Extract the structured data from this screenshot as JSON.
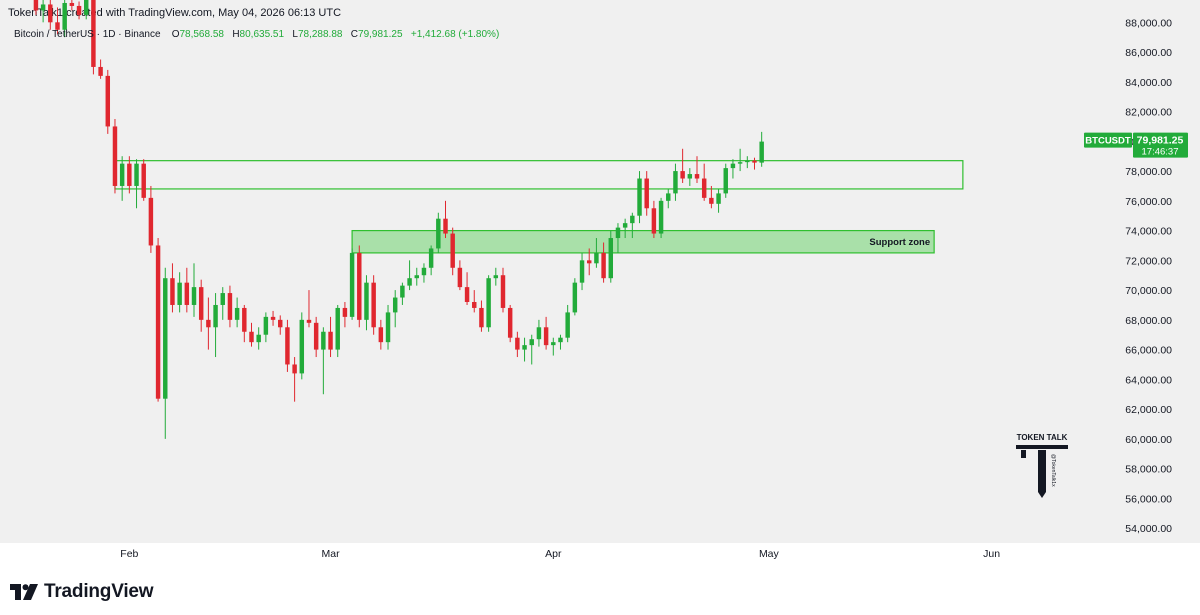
{
  "header": {
    "text": "TokenTalk1 created with TradingView.com, May 04, 2026 06:13 UTC"
  },
  "legend": {
    "symbol": "Bitcoin / TetherUS · 1D · Binance",
    "o_label": "O",
    "o_value": "78,568.58",
    "h_label": "H",
    "h_value": "80,635.51",
    "l_label": "L",
    "l_value": "78,288.88",
    "c_label": "C",
    "c_value": "79,981.25",
    "change": "+1,412.68 (+1.80%)"
  },
  "price_tag": {
    "symbol": "BTCUSDT",
    "price": "79,981.25",
    "countdown": "17:46:37"
  },
  "footer": {
    "brand": "TradingView"
  },
  "watermark": {
    "title": "TOKEN TALK",
    "handle": "@TokenTalk1x"
  },
  "colors": {
    "up": "#22ab3a",
    "down": "#e0272f",
    "zone_fill": "#6fd36f",
    "zone_border": "#2fbf2f",
    "bg": "#f0f0f0"
  },
  "chart_data": {
    "type": "candlestick",
    "title": "Bitcoin / TetherUS · 1D · Binance",
    "ylim": [
      53000,
      89500
    ],
    "y_axis_position": "right",
    "y_ticks": [
      88000,
      86000,
      84000,
      82000,
      80000,
      78000,
      76000,
      74000,
      72000,
      70000,
      68000,
      66000,
      64000,
      62000,
      60000,
      58000,
      56000,
      54000
    ],
    "y_tick_labels": [
      "88,000.00",
      "86,000.00",
      "84,000.00",
      "82,000.00",
      "80,000.00",
      "78,000.00",
      "76,000.00",
      "74,000.00",
      "72,000.00",
      "70,000.00",
      "68,000.00",
      "66,000.00",
      "64,000.00",
      "62,000.00",
      "60,000.00",
      "58,000.00",
      "56,000.00",
      "54,000.00"
    ],
    "x_ticks": [
      {
        "label": "Feb",
        "date": "2026-02-01"
      },
      {
        "label": "Mar",
        "date": "2026-03-01"
      },
      {
        "label": "Apr",
        "date": "2026-04-01"
      },
      {
        "label": "May",
        "date": "2026-05-01"
      },
      {
        "label": "Jun",
        "date": "2026-06-01"
      }
    ],
    "x_range": [
      "2026-01-14",
      "2026-06-30"
    ],
    "grid": false,
    "candles_ohlc": [
      [
        "2026-01-19",
        89500,
        90000,
        88500,
        88800
      ],
      [
        "2026-01-20",
        88800,
        89600,
        88000,
        89200
      ],
      [
        "2026-01-21",
        89200,
        89500,
        87500,
        88000
      ],
      [
        "2026-01-22",
        88000,
        89000,
        87200,
        87500
      ],
      [
        "2026-01-23",
        87500,
        89600,
        87000,
        89300
      ],
      [
        "2026-01-24",
        89300,
        89600,
        88800,
        89100
      ],
      [
        "2026-01-25",
        89100,
        89400,
        88200,
        88500
      ],
      [
        "2026-01-26",
        88500,
        89800,
        88200,
        89500
      ],
      [
        "2026-01-27",
        89500,
        89700,
        84500,
        85000
      ],
      [
        "2026-01-28",
        85000,
        85500,
        84200,
        84400
      ],
      [
        "2026-01-29",
        84400,
        84800,
        80500,
        81000
      ],
      [
        "2026-01-30",
        81000,
        81500,
        76500,
        77000
      ],
      [
        "2026-01-31",
        77000,
        79000,
        76000,
        78500
      ],
      [
        "2026-02-01",
        78500,
        79000,
        76500,
        77000
      ],
      [
        "2026-02-02",
        77000,
        78800,
        75500,
        78500
      ],
      [
        "2026-02-03",
        78500,
        78800,
        76000,
        76200
      ],
      [
        "2026-02-04",
        76200,
        77000,
        72500,
        73000
      ],
      [
        "2026-02-05",
        73000,
        73500,
        62500,
        62700
      ],
      [
        "2026-02-06",
        62700,
        71500,
        60000,
        70800
      ],
      [
        "2026-02-07",
        70800,
        71800,
        68500,
        69000
      ],
      [
        "2026-02-08",
        69000,
        71200,
        68500,
        70500
      ],
      [
        "2026-02-09",
        70500,
        71500,
        68500,
        69000
      ],
      [
        "2026-02-10",
        69000,
        71800,
        68200,
        70200
      ],
      [
        "2026-02-11",
        70200,
        70700,
        67200,
        68000
      ],
      [
        "2026-02-12",
        68000,
        69500,
        66000,
        67500
      ],
      [
        "2026-02-13",
        67500,
        69800,
        65500,
        69000
      ],
      [
        "2026-02-14",
        69000,
        70200,
        68000,
        69800
      ],
      [
        "2026-02-15",
        69800,
        70300,
        67500,
        68000
      ],
      [
        "2026-02-16",
        68000,
        69500,
        67500,
        68800
      ],
      [
        "2026-02-17",
        68800,
        69000,
        66500,
        67200
      ],
      [
        "2026-02-18",
        67200,
        67800,
        66200,
        66500
      ],
      [
        "2026-02-19",
        66500,
        67500,
        66000,
        67000
      ],
      [
        "2026-02-20",
        67000,
        68500,
        66500,
        68200
      ],
      [
        "2026-02-21",
        68200,
        68600,
        67600,
        68000
      ],
      [
        "2026-02-22",
        68000,
        68300,
        67000,
        67500
      ],
      [
        "2026-02-23",
        67500,
        68000,
        64500,
        65000
      ],
      [
        "2026-02-24",
        65000,
        65500,
        62500,
        64400
      ],
      [
        "2026-02-25",
        64400,
        68500,
        64000,
        68000
      ],
      [
        "2026-02-26",
        68000,
        70000,
        67500,
        67800
      ],
      [
        "2026-02-27",
        67800,
        68200,
        65500,
        66000
      ],
      [
        "2026-02-28",
        66000,
        67500,
        63000,
        67200
      ],
      [
        "2026-03-01",
        67200,
        68200,
        65500,
        66000
      ],
      [
        "2026-03-02",
        66000,
        69000,
        65500,
        68800
      ],
      [
        "2026-03-03",
        68800,
        69200,
        67500,
        68200
      ],
      [
        "2026-03-04",
        68200,
        72800,
        68000,
        72500
      ],
      [
        "2026-03-05",
        72500,
        73000,
        67500,
        68000
      ],
      [
        "2026-03-06",
        68000,
        71000,
        67300,
        70500
      ],
      [
        "2026-03-07",
        70500,
        71000,
        67000,
        67500
      ],
      [
        "2026-03-08",
        67500,
        68000,
        66000,
        66500
      ],
      [
        "2026-03-09",
        66500,
        69000,
        66000,
        68500
      ],
      [
        "2026-03-10",
        68500,
        70000,
        67500,
        69500
      ],
      [
        "2026-03-11",
        69500,
        70500,
        69000,
        70300
      ],
      [
        "2026-03-12",
        70300,
        72000,
        70000,
        70800
      ],
      [
        "2026-03-13",
        70800,
        71500,
        70300,
        71000
      ],
      [
        "2026-03-14",
        71000,
        71800,
        70500,
        71500
      ],
      [
        "2026-03-15",
        71500,
        73000,
        71000,
        72800
      ],
      [
        "2026-03-16",
        72800,
        75200,
        72500,
        74800
      ],
      [
        "2026-03-17",
        74800,
        76000,
        73500,
        73800
      ],
      [
        "2026-03-18",
        73800,
        74200,
        71000,
        71500
      ],
      [
        "2026-03-19",
        71500,
        72000,
        70000,
        70200
      ],
      [
        "2026-03-20",
        70200,
        71200,
        69000,
        69200
      ],
      [
        "2026-03-21",
        69200,
        70000,
        68500,
        68800
      ],
      [
        "2026-03-22",
        68800,
        69300,
        67200,
        67500
      ],
      [
        "2026-03-23",
        67500,
        71000,
        67200,
        70800
      ],
      [
        "2026-03-24",
        70800,
        71500,
        70300,
        71000
      ],
      [
        "2026-03-25",
        71000,
        71500,
        68500,
        68800
      ],
      [
        "2026-03-26",
        68800,
        69000,
        66500,
        66800
      ],
      [
        "2026-03-27",
        66800,
        67200,
        65500,
        66000
      ],
      [
        "2026-03-28",
        66000,
        66800,
        65200,
        66300
      ],
      [
        "2026-03-29",
        66300,
        67000,
        65000,
        66700
      ],
      [
        "2026-03-30",
        66700,
        68000,
        66200,
        67500
      ],
      [
        "2026-03-31",
        67500,
        68200,
        66000,
        66300
      ],
      [
        "2026-04-01",
        66300,
        66800,
        65600,
        66500
      ],
      [
        "2026-04-02",
        66500,
        67000,
        66000,
        66800
      ],
      [
        "2026-04-03",
        66800,
        69000,
        66500,
        68500
      ],
      [
        "2026-04-04",
        68500,
        70800,
        68300,
        70500
      ],
      [
        "2026-04-05",
        70500,
        72500,
        70000,
        72000
      ],
      [
        "2026-04-06",
        72000,
        72800,
        71000,
        71800
      ],
      [
        "2026-04-07",
        71800,
        73500,
        71500,
        72500
      ],
      [
        "2026-04-08",
        72500,
        73200,
        70500,
        70800
      ],
      [
        "2026-04-09",
        70800,
        74000,
        70500,
        73500
      ],
      [
        "2026-04-10",
        73500,
        74500,
        72500,
        74200
      ],
      [
        "2026-04-11",
        74200,
        74800,
        73500,
        74500
      ],
      [
        "2026-04-12",
        74500,
        75200,
        73500,
        75000
      ],
      [
        "2026-04-13",
        75000,
        78000,
        74500,
        77500
      ],
      [
        "2026-04-14",
        77500,
        78000,
        75000,
        75500
      ],
      [
        "2026-04-15",
        75500,
        76000,
        73500,
        73800
      ],
      [
        "2026-04-16",
        73800,
        76200,
        73500,
        76000
      ],
      [
        "2026-04-17",
        76000,
        76800,
        75500,
        76500
      ],
      [
        "2026-04-18",
        76500,
        78500,
        76000,
        78000
      ],
      [
        "2026-04-19",
        78000,
        79500,
        77200,
        77500
      ],
      [
        "2026-04-20",
        77500,
        78200,
        77000,
        77800
      ],
      [
        "2026-04-21",
        77800,
        79000,
        77200,
        77500
      ],
      [
        "2026-04-22",
        77500,
        78500,
        76000,
        76200
      ],
      [
        "2026-04-23",
        76200,
        77000,
        75500,
        75800
      ],
      [
        "2026-04-24",
        75800,
        76800,
        75200,
        76500
      ],
      [
        "2026-04-25",
        76500,
        78500,
        76200,
        78200
      ],
      [
        "2026-04-26",
        78200,
        78800,
        77500,
        78500
      ],
      [
        "2026-04-27",
        78500,
        79500,
        78000,
        78600
      ],
      [
        "2026-04-28",
        78600,
        79000,
        78200,
        78700
      ],
      [
        "2026-04-29",
        78700,
        78900,
        78100,
        78568.58
      ],
      [
        "2026-04-30",
        78568.58,
        80635.51,
        78288.88,
        79981.25
      ]
    ],
    "annotations": [
      {
        "type": "zone",
        "label": "",
        "from": "2026-01-30",
        "to": "2026-05-28",
        "low": 76800,
        "high": 78700
      },
      {
        "type": "zone",
        "label": "Support zone",
        "from": "2026-03-04",
        "to": "2026-05-24",
        "low": 72500,
        "high": 74000
      }
    ],
    "last_price": 79981.25
  }
}
